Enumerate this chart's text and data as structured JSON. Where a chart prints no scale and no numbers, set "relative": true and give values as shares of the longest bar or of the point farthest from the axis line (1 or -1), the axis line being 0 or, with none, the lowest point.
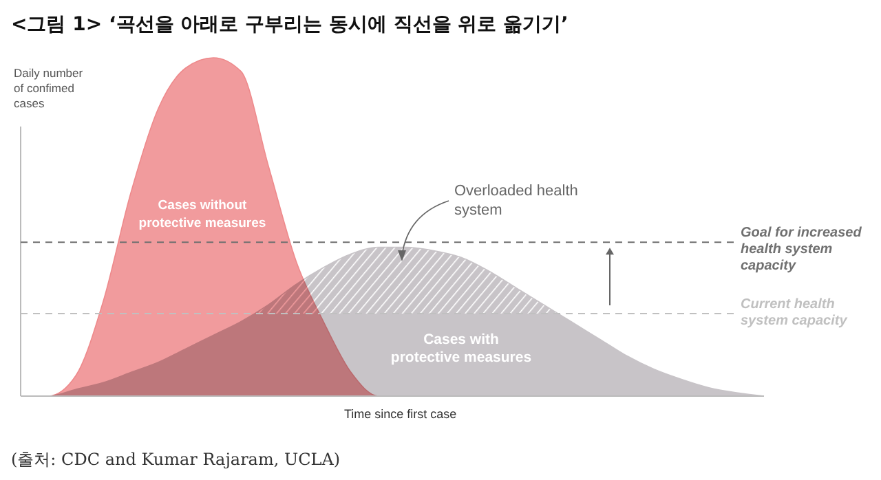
{
  "chart_data": {
    "type": "area",
    "title": "<그림 1> ‘곡선을 아래로 구부리는 동시에 직선을 위로 옮기기’",
    "xlabel": "Time since first case",
    "ylabel": "Daily number of confimed cases",
    "relative": true,
    "categories": [
      null,
      null,
      null,
      null,
      null,
      null,
      null,
      null,
      null,
      null,
      null,
      null,
      null,
      null,
      null,
      null,
      null,
      null,
      null,
      null,
      null,
      null,
      null,
      null,
      null,
      null,
      null,
      null
    ],
    "series": [
      {
        "name": "Cases without protective measures",
        "color": "#ee8a8c",
        "values": [
          0,
          0,
          0.06,
          0.28,
          0.6,
          0.85,
          0.97,
          1.0,
          0.96,
          0.68,
          0.4,
          0.22,
          0.07,
          0,
          0,
          0,
          0,
          0,
          0,
          0,
          0,
          0,
          0,
          0,
          0,
          0,
          0,
          0
        ]
      },
      {
        "name": "Cases with protective measures",
        "color": "#c8c4c8",
        "values": [
          0,
          0,
          0.02,
          0.04,
          0.07,
          0.1,
          0.14,
          0.18,
          0.22,
          0.27,
          0.33,
          0.38,
          0.42,
          0.44,
          0.44,
          0.43,
          0.41,
          0.37,
          0.32,
          0.27,
          0.22,
          0.17,
          0.12,
          0.08,
          0.05,
          0.025,
          0.01,
          0
        ]
      }
    ],
    "ref_lines": [
      {
        "axis": "y",
        "value": 0.455,
        "label": "Goal for increased health system capacity",
        "color": "#707070",
        "line_style": "dashed"
      },
      {
        "axis": "y",
        "value": 0.244,
        "label": "Current health system capacity",
        "color": "#c0c0c0",
        "line_style": "dashed"
      }
    ],
    "annotations": [
      "Overloaded health system",
      "(출처: CDC and Kumar Rajaram, UCLA)"
    ]
  }
}
